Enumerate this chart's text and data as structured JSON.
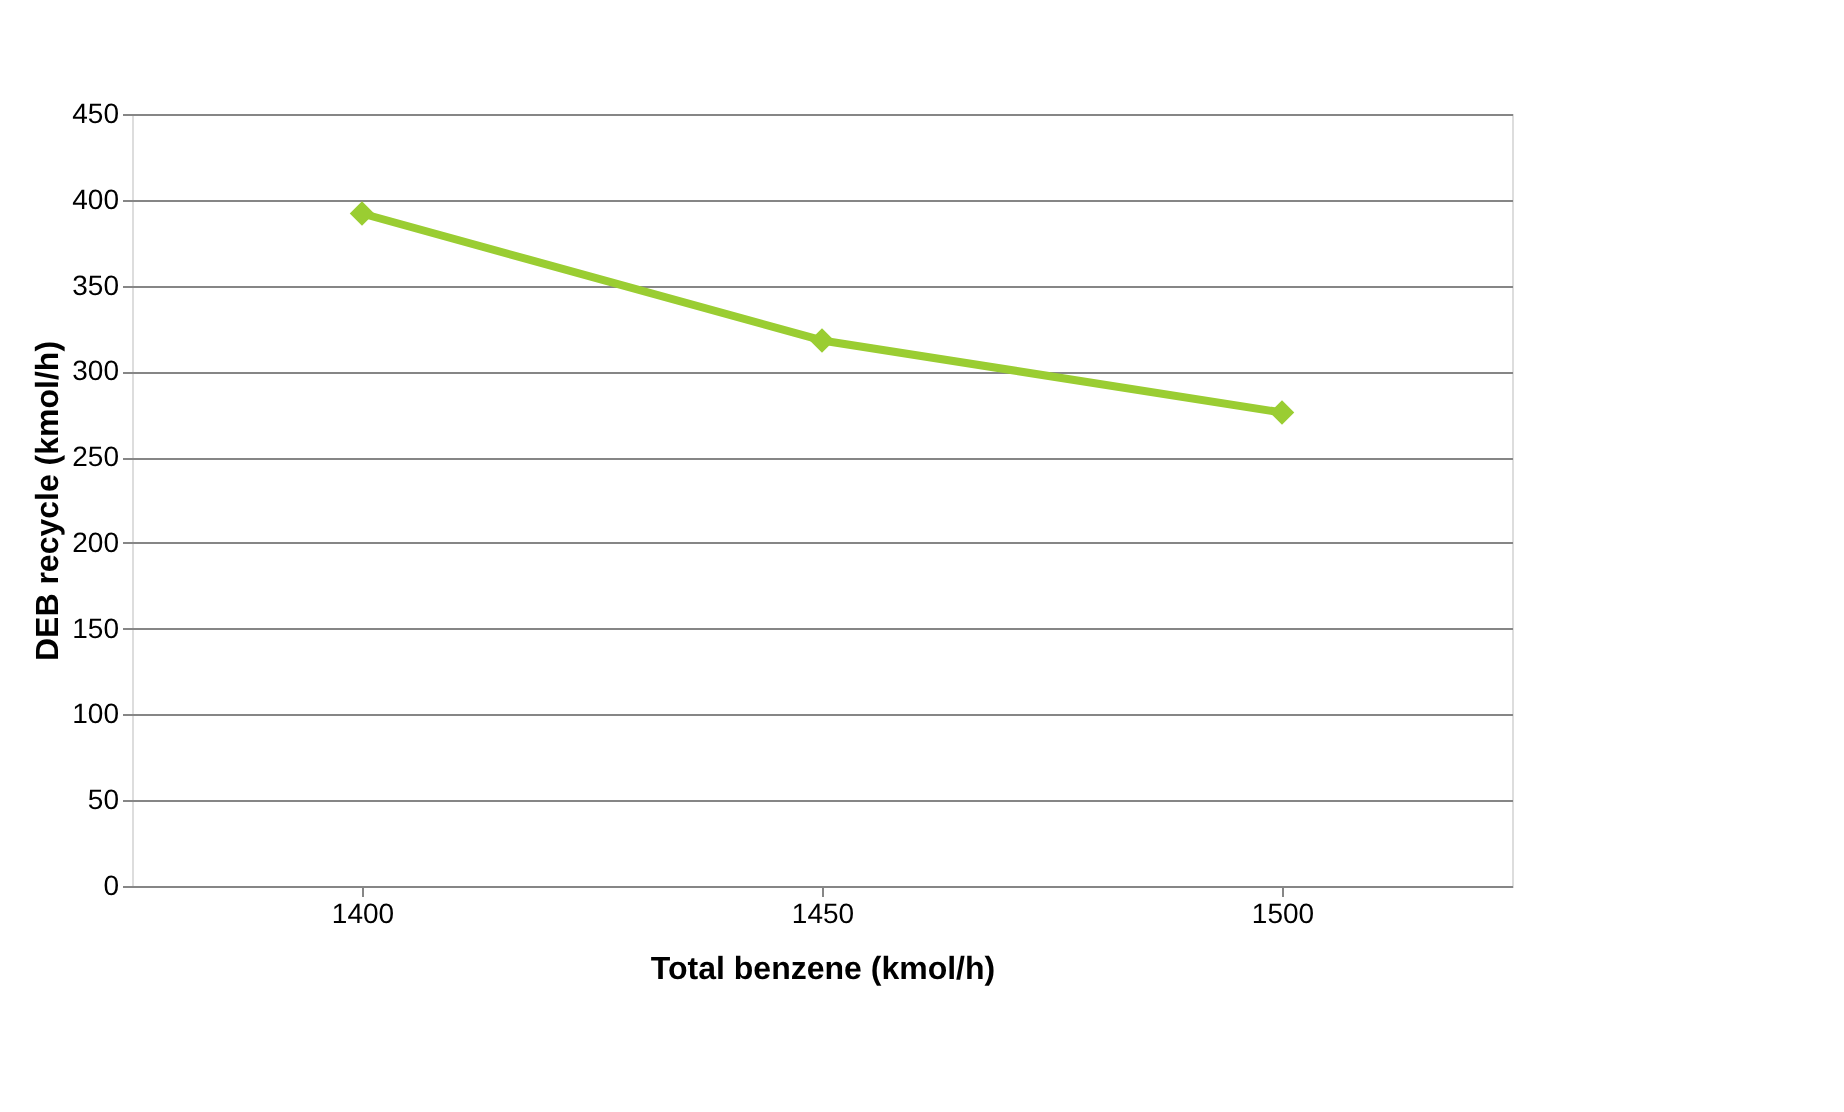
{
  "chart_data": {
    "type": "line",
    "xlabel": "Total benzene (kmol/h)",
    "ylabel": "DEB recycle (kmol/h)",
    "categories": [
      "1400",
      "1450",
      "1500"
    ],
    "series": [
      {
        "color": "#9acd32",
        "values": [
          392,
          318,
          276
        ]
      }
    ],
    "ylim": [
      0,
      450
    ],
    "yticks": [
      0,
      50,
      100,
      150,
      200,
      250,
      300,
      350,
      400,
      450
    ],
    "grid": "y",
    "marker": "diamond",
    "line_style": "solid"
  }
}
